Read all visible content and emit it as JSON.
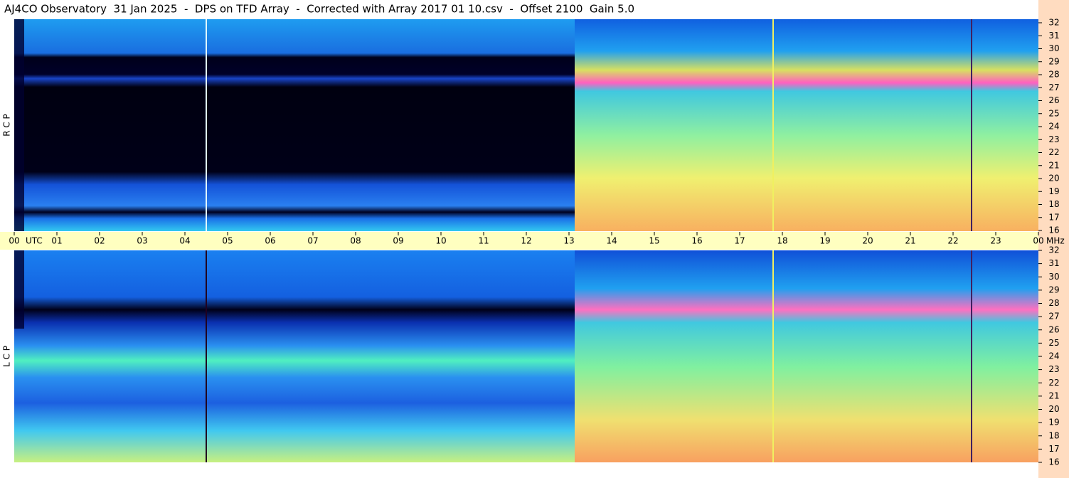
{
  "chart_data": [
    {
      "type": "spectrogram",
      "title": "AJ4CO Observatory  31 Jan 2025  -  DPS on TFD Array  -  Corrected with Array 2017 01 10.csv  -  Offset 2100  Gain 5.0",
      "panel_label": "R C P",
      "xlabel": "UTC",
      "ylabel": "MHz",
      "xlim": [
        0,
        24
      ],
      "xticks": [
        {
          "value": 0,
          "label": "00"
        },
        {
          "value": 1,
          "label": "01"
        },
        {
          "value": 2,
          "label": "02"
        },
        {
          "value": 3,
          "label": "03"
        },
        {
          "value": 4,
          "label": "04"
        },
        {
          "value": 5,
          "label": "05"
        },
        {
          "value": 6,
          "label": "06"
        },
        {
          "value": 7,
          "label": "07"
        },
        {
          "value": 8,
          "label": "08"
        },
        {
          "value": 9,
          "label": "09"
        },
        10,
        11,
        12,
        13,
        14,
        15,
        16,
        17,
        18,
        19,
        20,
        21,
        22,
        23,
        {
          "value": 24,
          "label": "00"
        }
      ],
      "ylim": [
        16,
        32
      ],
      "yticks": [
        16,
        17,
        18,
        19,
        20,
        21,
        22,
        23,
        24,
        25,
        26,
        27,
        28,
        29,
        30,
        31,
        32
      ]
    },
    {
      "type": "spectrogram",
      "panel_label": "L C P",
      "xlim": [
        0,
        24
      ],
      "ylim": [
        16,
        32
      ],
      "yticks": [
        16,
        17,
        18,
        19,
        20,
        21,
        22,
        23,
        24,
        25,
        26,
        27,
        28,
        29,
        30,
        31,
        32
      ]
    }
  ]
}
